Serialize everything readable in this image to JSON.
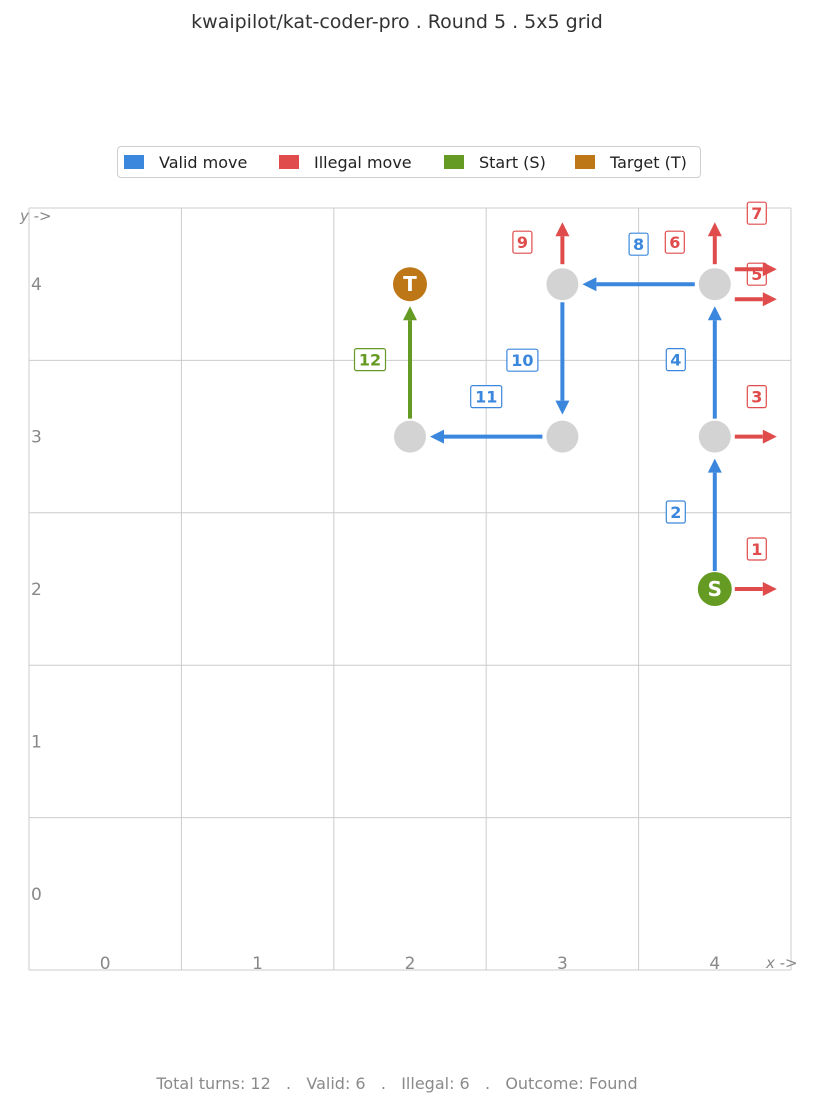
{
  "title": "kwaipilot/kat-coder-pro  .  Round 5  .  5x5 grid",
  "legend": [
    {
      "label": "Valid move",
      "color": "#3a87dd"
    },
    {
      "label": "Illegal move",
      "color": "#e04b4b"
    },
    {
      "label": "Start (S)",
      "color": "#659b22"
    },
    {
      "label": "Target (T)",
      "color": "#bd7716"
    }
  ],
  "axes": {
    "x_label": "x ->",
    "y_label": "y ->",
    "x_ticks": [
      "0",
      "1",
      "2",
      "3",
      "4"
    ],
    "y_ticks": [
      "0",
      "1",
      "2",
      "3",
      "4"
    ]
  },
  "grid_size": 5,
  "start": {
    "x": 4,
    "y": 2,
    "label": "S"
  },
  "target": {
    "x": 2,
    "y": 4,
    "label": "T"
  },
  "visited": [
    {
      "x": 4,
      "y": 3
    },
    {
      "x": 4,
      "y": 4
    },
    {
      "x": 3,
      "y": 4
    },
    {
      "x": 3,
      "y": 3
    },
    {
      "x": 2,
      "y": 3
    }
  ],
  "moves": [
    {
      "turn": "1",
      "from": [
        4,
        2
      ],
      "dir": "right",
      "valid": false
    },
    {
      "turn": "2",
      "from": [
        4,
        2
      ],
      "dir": "up",
      "valid": true
    },
    {
      "turn": "3",
      "from": [
        4,
        3
      ],
      "dir": "right",
      "valid": false
    },
    {
      "turn": "4",
      "from": [
        4,
        3
      ],
      "dir": "up",
      "valid": true
    },
    {
      "turn": "5",
      "from": [
        4,
        4
      ],
      "dir": "right",
      "valid": false
    },
    {
      "turn": "6",
      "from": [
        4,
        4
      ],
      "dir": "up",
      "valid": false
    },
    {
      "turn": "7",
      "from": [
        4,
        4
      ],
      "dir": "right",
      "valid": false
    },
    {
      "turn": "8",
      "from": [
        4,
        4
      ],
      "dir": "left",
      "valid": true
    },
    {
      "turn": "9",
      "from": [
        3,
        4
      ],
      "dir": "up",
      "valid": false
    },
    {
      "turn": "10",
      "from": [
        3,
        4
      ],
      "dir": "down",
      "valid": true
    },
    {
      "turn": "11",
      "from": [
        3,
        3
      ],
      "dir": "left",
      "valid": true
    },
    {
      "turn": "12",
      "from": [
        2,
        3
      ],
      "dir": "up",
      "valid": true,
      "final": true
    }
  ],
  "colors": {
    "valid": "#3a87dd",
    "illegal": "#e04b4b",
    "start": "#659b22",
    "target": "#bd7716",
    "visited": "#d3d3d3",
    "grid": "#cccccc",
    "tick": "#888888"
  },
  "footer": "Total turns: 12   .   Valid: 6   .   Illegal: 6   .   Outcome: Found"
}
